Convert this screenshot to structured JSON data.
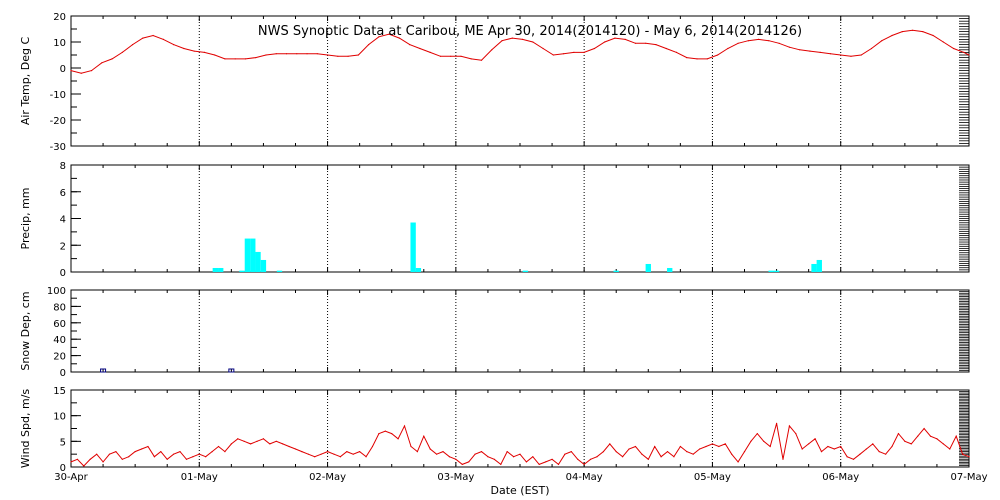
{
  "title": "NWS Synoptic Data at Caribou, ME   Apr 30, 2014(2014120) - May  6, 2014(2014126)",
  "xlabel": "Date (EST)",
  "x_ticks": [
    "30-Apr",
    "01-May",
    "02-May",
    "03-May",
    "04-May",
    "05-May",
    "06-May",
    "07-May"
  ],
  "colors": {
    "air_temp": "#e00000",
    "precip": "#00ffff",
    "snow": "#000080",
    "wind": "#e00000",
    "grid": "#000000"
  },
  "chart_data": [
    {
      "type": "line",
      "ylabel": "Air Temp, Deg C",
      "ylim": [
        -30,
        20
      ],
      "yticks": [
        -30,
        -20,
        -10,
        0,
        10,
        20
      ],
      "xlim": [
        0,
        7
      ],
      "x_unit": "days since 30-Apr 00:00 EST",
      "grid": "vertical dotted at day boundaries",
      "x": [
        0.0,
        0.08,
        0.16,
        0.24,
        0.32,
        0.4,
        0.48,
        0.56,
        0.64,
        0.72,
        0.8,
        0.88,
        0.96,
        1.04,
        1.12,
        1.2,
        1.28,
        1.36,
        1.44,
        1.52,
        1.6,
        1.68,
        1.76,
        1.84,
        1.92,
        2.0,
        2.08,
        2.16,
        2.24,
        2.32,
        2.4,
        2.48,
        2.56,
        2.64,
        2.72,
        2.8,
        2.88,
        2.96,
        3.04,
        3.12,
        3.2,
        3.28,
        3.36,
        3.44,
        3.52,
        3.6,
        3.68,
        3.76,
        3.84,
        3.92,
        4.0,
        4.08,
        4.16,
        4.24,
        4.32,
        4.4,
        4.48,
        4.56,
        4.64,
        4.72,
        4.8,
        4.88,
        4.96,
        5.04,
        5.12,
        5.2,
        5.28,
        5.36,
        5.44,
        5.52,
        5.6,
        5.68,
        5.76,
        5.84,
        5.92,
        6.0,
        6.08,
        6.16,
        6.24,
        6.32,
        6.4,
        6.48,
        6.56,
        6.64,
        6.72,
        6.8,
        6.88,
        6.96,
        7.0
      ],
      "values": [
        -1,
        -2,
        -1,
        2,
        3.5,
        6,
        9,
        11.5,
        12.5,
        11,
        9,
        7.5,
        6.5,
        6,
        5,
        3.5,
        3.5,
        3.5,
        4,
        5,
        5.5,
        5.5,
        5.5,
        5.5,
        5.5,
        5,
        4.5,
        4.5,
        5,
        9,
        12,
        13,
        11.5,
        9,
        7.5,
        6,
        4.5,
        4.5,
        4.5,
        3.5,
        3,
        7,
        10.5,
        11.5,
        11,
        10,
        7.5,
        5,
        5.5,
        6,
        6,
        7.5,
        10,
        11.5,
        11,
        9.5,
        9.5,
        9,
        7.5,
        6,
        4,
        3.5,
        3.5,
        5,
        7.5,
        9.5,
        10.5,
        11,
        10.5,
        9.5,
        8,
        7,
        6.5,
        6,
        5.5,
        5,
        4.5,
        5,
        7.5,
        10.5,
        12.5,
        14,
        14.5,
        14,
        12.5,
        10,
        7.5,
        6,
        5
      ]
    },
    {
      "type": "bar",
      "ylabel": "Precip, mm",
      "ylim": [
        0,
        8
      ],
      "yticks": [
        0,
        2,
        4,
        6,
        8
      ],
      "xlim": [
        0,
        7
      ],
      "x_unit": "days since 30-Apr 00:00 EST (hourly bins)",
      "x": [
        1.125,
        1.167,
        1.333,
        1.375,
        1.417,
        1.458,
        1.5,
        1.625,
        2.667,
        2.708,
        3.542,
        4.25,
        4.5,
        4.667,
        5.458,
        5.5,
        5.792,
        5.833
      ],
      "values": [
        0.3,
        0.3,
        0.1,
        2.5,
        2.5,
        1.5,
        0.9,
        0.1,
        3.7,
        0.3,
        0.1,
        0.1,
        0.6,
        0.3,
        0.1,
        0.1,
        0.6,
        0.9
      ]
    },
    {
      "type": "scatter",
      "ylabel": "Snow Dep, cm",
      "ylim": [
        0,
        100
      ],
      "yticks": [
        0,
        20,
        40,
        60,
        80,
        100
      ],
      "xlim": [
        0,
        7
      ],
      "x_unit": "days since 30-Apr 00:00 EST",
      "marker": "square",
      "x": [
        0.25,
        1.25
      ],
      "values": [
        0,
        0
      ]
    },
    {
      "type": "line",
      "ylabel": "Wind Spd, m/s",
      "ylim": [
        0,
        15
      ],
      "yticks": [
        0,
        5,
        10,
        15
      ],
      "xlim": [
        0,
        7
      ],
      "x_unit": "days since 30-Apr 00:00 EST",
      "x": [
        0.0,
        0.05,
        0.1,
        0.15,
        0.2,
        0.25,
        0.3,
        0.35,
        0.4,
        0.45,
        0.5,
        0.55,
        0.6,
        0.65,
        0.7,
        0.75,
        0.8,
        0.85,
        0.9,
        0.95,
        1.0,
        1.05,
        1.1,
        1.15,
        1.2,
        1.25,
        1.3,
        1.35,
        1.4,
        1.45,
        1.5,
        1.55,
        1.6,
        1.65,
        1.7,
        1.75,
        1.8,
        1.85,
        1.9,
        1.95,
        2.0,
        2.05,
        2.1,
        2.15,
        2.2,
        2.25,
        2.3,
        2.35,
        2.4,
        2.45,
        2.5,
        2.55,
        2.6,
        2.65,
        2.7,
        2.75,
        2.8,
        2.85,
        2.9,
        2.95,
        3.0,
        3.05,
        3.1,
        3.15,
        3.2,
        3.25,
        3.3,
        3.35,
        3.4,
        3.45,
        3.5,
        3.55,
        3.6,
        3.65,
        3.7,
        3.75,
        3.8,
        3.85,
        3.9,
        3.95,
        4.0,
        4.05,
        4.1,
        4.15,
        4.2,
        4.25,
        4.3,
        4.35,
        4.4,
        4.45,
        4.5,
        4.55,
        4.6,
        4.65,
        4.7,
        4.75,
        4.8,
        4.85,
        4.9,
        4.95,
        5.0,
        5.05,
        5.1,
        5.15,
        5.2,
        5.25,
        5.3,
        5.35,
        5.4,
        5.45,
        5.5,
        5.55,
        5.6,
        5.65,
        5.7,
        5.75,
        5.8,
        5.85,
        5.9,
        5.95,
        6.0,
        6.05,
        6.1,
        6.15,
        6.2,
        6.25,
        6.3,
        6.35,
        6.4,
        6.45,
        6.5,
        6.55,
        6.6,
        6.65,
        6.7,
        6.75,
        6.8,
        6.85,
        6.9,
        6.95,
        7.0
      ],
      "values": [
        1,
        1.5,
        0.2,
        1.5,
        2.5,
        1,
        2.5,
        3,
        1.5,
        2,
        3,
        3.5,
        4,
        2,
        3,
        1.5,
        2.5,
        3,
        1.5,
        2,
        2.5,
        2,
        3,
        4,
        3,
        4.5,
        5.5,
        5,
        4.5,
        5,
        5.5,
        4.5,
        5,
        4.5,
        4,
        3.5,
        3,
        2.5,
        2,
        2.5,
        3,
        2.5,
        2,
        3,
        2.5,
        3,
        2,
        4,
        6.5,
        7,
        6.5,
        5.5,
        8,
        4,
        3,
        6,
        3.5,
        2.5,
        3,
        2,
        1.5,
        0.5,
        1,
        2.5,
        3,
        2,
        1.5,
        0.5,
        3,
        2,
        2.5,
        1,
        2,
        0.5,
        1,
        1.5,
        0.5,
        2.5,
        3,
        1.5,
        0.5,
        1.5,
        2,
        3,
        4.5,
        3,
        2,
        3.5,
        4,
        2.5,
        1.5,
        4,
        2,
        3,
        2,
        4,
        3,
        2.5,
        3.5,
        4,
        4.5,
        4,
        4.5,
        2.5,
        1,
        3,
        5,
        6.5,
        5,
        4,
        8.5,
        1.5,
        8,
        6.5,
        3.5,
        4.5,
        5.5,
        3,
        4,
        3.5,
        4,
        2,
        1.5,
        2.5,
        3.5,
        4.5,
        3,
        2.5,
        4,
        6.5,
        5,
        4.5,
        6,
        7.5,
        6,
        5.5,
        4.5,
        3.5,
        6,
        2.5,
        2
      ]
    }
  ]
}
